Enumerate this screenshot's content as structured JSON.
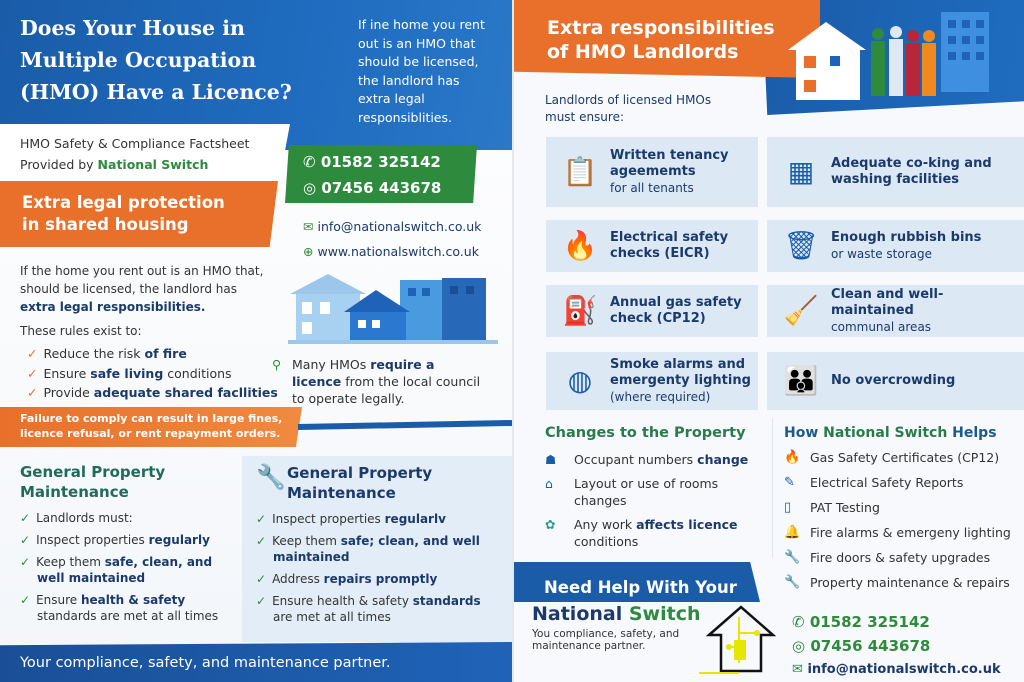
{
  "left": {
    "title": [
      "Does Your House in",
      "Multiple Occupation",
      "(HMO) Have a Licence?"
    ],
    "intro": [
      "If ine home you rent",
      "out is an HMO that",
      "should be licensed,",
      "the landlord has",
      "extra legal",
      "responsiblities."
    ],
    "subtitle": "HMO Safety & Compliance Factsheet",
    "provided_prefix": "Provided by ",
    "provided_brand": "National Switch",
    "banner": [
      "Extra legal protection",
      "in shared housing"
    ],
    "contact": {
      "phone": "01582 325142",
      "whatsapp": "07456 443678",
      "email": "info@nationalswitch.co.uk",
      "web": "www.nationalswitch.co.uk"
    },
    "body": [
      {
        "t": "If the home you rent out is an HMO that, should be licensed, the landlord has "
      },
      {
        "t": "extra legal responsibilities.",
        "b": true
      }
    ],
    "rules_intro": "These rules exist to:",
    "rules": [
      [
        {
          "t": "Reduce the risk "
        },
        {
          "t": "of fire",
          "b": true
        }
      ],
      [
        {
          "t": "Ensure "
        },
        {
          "t": "safe living",
          "b": true
        },
        {
          "t": " conditions"
        }
      ],
      [
        {
          "t": "Provide "
        },
        {
          "t": "adequate shared facllities",
          "b": true
        }
      ]
    ],
    "licence_note": [
      {
        "t": "Many HMOs "
      },
      {
        "t": "require a licence",
        "b": true
      },
      {
        "t": " from the local council to operate legally."
      }
    ],
    "warning": "Failure to comply can result in large fines, licence refusal, or rent repayment orders.",
    "maint_left": {
      "title": "General Property Maintenance",
      "items": [
        [
          {
            "t": "Landlords must:"
          }
        ],
        [
          {
            "t": "Inspect properties "
          },
          {
            "t": "regularly",
            "b": true
          }
        ],
        [
          {
            "t": "Keep them "
          },
          {
            "t": "safe, clean, and well maintained",
            "b": true
          }
        ],
        [
          {
            "t": "Ensure "
          },
          {
            "t": "health & safety",
            "b": true
          },
          {
            "t": " standards are met at all times"
          }
        ]
      ]
    },
    "maint_right": {
      "title": "General Property Maintenance",
      "items": [
        [
          {
            "t": "Inspect properties "
          },
          {
            "t": "regularlv",
            "b": true
          }
        ],
        [
          {
            "t": "Keep them "
          },
          {
            "t": "safe; clean, and well maintained",
            "b": true
          }
        ],
        [
          {
            "t": "Address "
          },
          {
            "t": "repairs promptly",
            "b": true
          }
        ],
        [
          {
            "t": "Ensure health & safety "
          },
          {
            "t": "standards",
            "b": true
          },
          {
            "t": " are met at all times"
          }
        ]
      ]
    },
    "footer": "Your compliance, safety, and maintenance partner."
  },
  "right": {
    "title": [
      "Extra responsibilities",
      "of HMO Landlords"
    ],
    "lead": "Landlords of licensed HMOs must ensure:",
    "cards": [
      {
        "t": "Written tenancy ageememts",
        "s": "for all tenants",
        "icon": "clipboard-icon"
      },
      {
        "t": "Adequate co-king and washing facilities",
        "s": "",
        "icon": "kitchen-icon"
      },
      {
        "t": "Electrical safety checks (EICR)",
        "s": "",
        "icon": "electric-flame-icon"
      },
      {
        "t": "Enough rubbish bins",
        "s": "or waste storage",
        "icon": "bins-icon"
      },
      {
        "t": "Annual gas safety check (CP12)",
        "s": "",
        "icon": "gas-boiler-icon"
      },
      {
        "t": "Clean and well-maintained",
        "s": "communal areas",
        "icon": "cleaning-icon"
      },
      {
        "t": "Smoke alarms and emergenty lighting",
        "s": "(where required)",
        "icon": "smoke-alarm-icon"
      },
      {
        "t": "No overcrowding",
        "s": "",
        "icon": "people-icon"
      }
    ],
    "changes": {
      "title": "Changes to the Property",
      "items": [
        [
          {
            "t": "Occupant numbers "
          },
          {
            "t": "change",
            "b": true
          }
        ],
        [
          {
            "t": "Layout or use of rooms changes"
          }
        ],
        [
          {
            "t": "Any work "
          },
          {
            "t": "affects licence",
            "b": true
          },
          {
            "t": " conditions"
          }
        ]
      ]
    },
    "helps": {
      "title_a": "How ",
      "title_b": "National Switch",
      "title_c": " Helps",
      "items": [
        "Gas Safety Certificates (CP12)",
        "Electrical Safety Reports",
        "PAT Testing",
        "Fire alarms & emergeny lighting",
        "Fire doors & safety upgrades",
        "Property maintenance & repairs"
      ]
    },
    "cta": "Need Help With Your",
    "brand": {
      "a": "National",
      "b": "Switch",
      "tagline": "You compliance, safety, and maintenance partner."
    },
    "contact": {
      "phone": "01582 325142",
      "whatsapp": "07456 443678",
      "email": "info@nationalswitch.co.uk"
    }
  },
  "colors": {
    "blue": "#1a5ca8",
    "navy": "#1b3a6b",
    "orange": "#e8702a",
    "green": "#2e8b3e",
    "card": "#dce9f5"
  }
}
